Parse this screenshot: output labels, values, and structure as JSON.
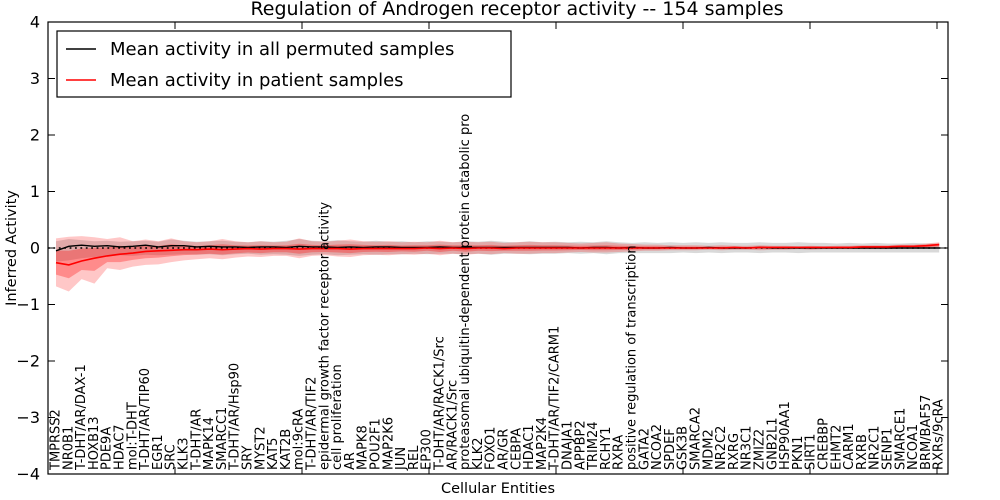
{
  "title": "Regulation of Androgen receptor activity -- 154 samples",
  "axes": {
    "x_label": "Cellular Entities",
    "y_label": "Inferred Activity",
    "y_ticks": [
      {
        "value": 4,
        "label": "4"
      },
      {
        "value": 3,
        "label": "3"
      },
      {
        "value": 2,
        "label": "2"
      },
      {
        "value": 1,
        "label": "1"
      },
      {
        "value": 0,
        "label": "0"
      },
      {
        "value": -1,
        "label": "−1"
      },
      {
        "value": -2,
        "label": "−2"
      },
      {
        "value": -3,
        "label": "−3"
      },
      {
        "value": -4,
        "label": "−4"
      }
    ]
  },
  "legend": {
    "items": [
      {
        "label": "Mean activity in all permuted samples",
        "color": "#000000"
      },
      {
        "label": "Mean activity in patient samples",
        "color": "#ff0000"
      }
    ]
  },
  "chart_data": {
    "type": "line",
    "title": "Regulation of Androgen receptor activity -- 154 samples",
    "xlabel": "Cellular Entities",
    "ylabel": "Inferred Activity",
    "ylim": [
      -4,
      4
    ],
    "grid": false,
    "legend_position": "upper left",
    "reference_line": {
      "y": 0,
      "style": "dotted",
      "color": "#000000"
    },
    "categories": [
      "TMPRSS2",
      "NR0B1",
      "T-DHT/AR/DAX-1",
      "HOXB13",
      "PDE9A",
      "HDAC7",
      "mol:T-DHT",
      "T-DHT/AR/TIP60",
      "EGR1",
      "SRC",
      "KLK3",
      "T-DHT/AR",
      "MAPK14",
      "SMARCC1",
      "T-DHT/AR/Hsp90",
      "SRY",
      "MYST2",
      "KAT5",
      "KAT2B",
      "mol:9cRA",
      "T-DHT/AR/TIF2",
      "epidermal growth factor receptor activity",
      "cell proliferation",
      "AR",
      "MAPK8",
      "POU2F1",
      "MAP2K6",
      "JUN",
      "REL",
      "EP300",
      "T-DHT/AR/RACK1/Src",
      "AR/RACK1/Src",
      "proteasomal ubiquitin-dependent protein catabolic pro",
      "KLK2",
      "FOXO1",
      "AR/GR",
      "CEBPA",
      "HDAC1",
      "MAP2K4",
      "T-DHT/AR/TIF2/CARM1",
      "DNAJA1",
      "APPBP2",
      "TRIM24",
      "RCHY1",
      "RXRA",
      "positive regulation of transcription",
      "GATA2",
      "NCOA2",
      "SPDEF",
      "GSK3B",
      "SMARCA2",
      "MDM2",
      "NR2C2",
      "RXRG",
      "NR3C1",
      "ZMIZ2",
      "GNB2L1",
      "HSP90AA1",
      "PKN1",
      "SIRT1",
      "CREBBP",
      "EHMT2",
      "CARM1",
      "RXRB",
      "NR2C1",
      "SENP1",
      "SMARCE1",
      "NCOA1",
      "BRM/BAF57",
      "RXRs/9cRA"
    ],
    "series": [
      {
        "name": "Mean activity in all permuted samples",
        "color": "#000000",
        "band_color": "rgba(0,0,0,0.15)",
        "values": [
          -0.05,
          0.03,
          0.05,
          0.03,
          0.04,
          0.02,
          0.03,
          0.05,
          0.02,
          0.04,
          0.04,
          0.02,
          0.03,
          0.02,
          0.02,
          0.01,
          0.02,
          0.02,
          0.01,
          0.03,
          0.02,
          0.02,
          0.01,
          0.02,
          0.01,
          0.02,
          0.02,
          0.01,
          0.01,
          0.01,
          0.02,
          0.01,
          0.01,
          0.01,
          0.01,
          0.01,
          0.01,
          0.01,
          0.01,
          0.01,
          0.01,
          0,
          0.01,
          0.01,
          0,
          0.01,
          0,
          0,
          0.01,
          0,
          0,
          0.01,
          0,
          0,
          0,
          0.01,
          0,
          0,
          0,
          0,
          0,
          0,
          0,
          0,
          0,
          0,
          0,
          0,
          0,
          0
        ],
        "band_upper": [
          0.12,
          0.16,
          0.14,
          0.12,
          0.13,
          0.11,
          0.12,
          0.13,
          0.11,
          0.15,
          0.13,
          0.11,
          0.12,
          0.13,
          0.11,
          0.1,
          0.12,
          0.11,
          0.13,
          0.16,
          0.13,
          0.12,
          0.14,
          0.12,
          0.11,
          0.13,
          0.11,
          0.12,
          0.1,
          0.12,
          0.11,
          0.1,
          0.12,
          0.11,
          0.13,
          0.11,
          0.1,
          0.12,
          0.1,
          0.11,
          0.1,
          0.11,
          0.1,
          0.12,
          0.1,
          0.09,
          0.1,
          0.09,
          0.1,
          0.09,
          0.1,
          0.09,
          0.1,
          0.09,
          0.09,
          0.1,
          0.09,
          0.09,
          0.1,
          0.09,
          0.09,
          0.08,
          0.09,
          0.08,
          0.09,
          0.08,
          0.08,
          0.09,
          0.08,
          0.08
        ],
        "band_lower": [
          -0.24,
          -0.22,
          -0.18,
          -0.16,
          -0.15,
          -0.13,
          -0.14,
          -0.12,
          -0.13,
          -0.12,
          -0.11,
          -0.12,
          -0.11,
          -0.13,
          -0.11,
          -0.1,
          -0.12,
          -0.11,
          -0.12,
          -0.14,
          -0.12,
          -0.11,
          -0.13,
          -0.12,
          -0.11,
          -0.12,
          -0.11,
          -0.11,
          -0.1,
          -0.11,
          -0.1,
          -0.1,
          -0.11,
          -0.1,
          -0.12,
          -0.1,
          -0.1,
          -0.11,
          -0.1,
          -0.1,
          -0.09,
          -0.1,
          -0.09,
          -0.11,
          -0.09,
          -0.09,
          -0.09,
          -0.09,
          -0.09,
          -0.08,
          -0.09,
          -0.08,
          -0.09,
          -0.08,
          -0.08,
          -0.09,
          -0.08,
          -0.08,
          -0.09,
          -0.08,
          -0.08,
          -0.08,
          -0.08,
          -0.08,
          -0.08,
          -0.08,
          -0.08,
          -0.08,
          -0.08,
          -0.08
        ]
      },
      {
        "name": "Mean activity in patient samples",
        "color": "#ff0000",
        "band_color": "rgba(255,0,0,0.22)",
        "band_inner_color": "rgba(255,0,0,0.30)",
        "values": [
          -0.26,
          -0.3,
          -0.23,
          -0.18,
          -0.14,
          -0.11,
          -0.09,
          -0.06,
          -0.05,
          -0.04,
          -0.03,
          -0.03,
          -0.02,
          -0.03,
          -0.02,
          -0.01,
          -0.02,
          -0.01,
          -0.01,
          -0.02,
          -0.01,
          -0.01,
          -0.01,
          -0.02,
          -0.01,
          -0.01,
          -0.01,
          -0.01,
          -0.01,
          0,
          -0.01,
          0,
          -0.01,
          0,
          0,
          -0.01,
          0,
          0,
          0,
          0,
          0,
          0,
          0,
          0,
          0,
          0,
          0,
          0,
          0,
          0,
          0,
          0,
          0,
          0.01,
          0,
          0.01,
          0.01,
          0.01,
          0.01,
          0.01,
          0.01,
          0.01,
          0.01,
          0.02,
          0.02,
          0.02,
          0.03,
          0.03,
          0.04,
          0.06
        ],
        "band_upper": [
          0.17,
          0.2,
          0.21,
          0.19,
          0.16,
          0.19,
          0.12,
          0.15,
          0.12,
          0.17,
          0.12,
          0.1,
          0.12,
          0.16,
          0.12,
          0.1,
          0.12,
          0.1,
          0.11,
          0.17,
          0.12,
          0.11,
          0.13,
          0.15,
          0.12,
          0.11,
          0.12,
          0.1,
          0.11,
          0.1,
          0.13,
          0.1,
          0.11,
          0.1,
          0.11,
          0.09,
          0.1,
          0.11,
          0.1,
          0.1,
          0.09,
          0.08,
          0.09,
          0.1,
          0.08,
          0.07,
          0.06,
          0.06,
          0.05,
          0.05,
          0.05,
          0.04,
          0.05,
          0.04,
          0.04,
          0.05,
          0.04,
          0.04,
          0.03,
          0.04,
          0.03,
          0.04,
          0.04,
          0.05,
          0.05,
          0.05,
          0.06,
          0.06,
          0.08,
          0.1
        ],
        "band_lower": [
          -0.68,
          -0.77,
          -0.55,
          -0.63,
          -0.36,
          -0.39,
          -0.33,
          -0.3,
          -0.29,
          -0.25,
          -0.22,
          -0.2,
          -0.18,
          -0.2,
          -0.17,
          -0.15,
          -0.16,
          -0.14,
          -0.14,
          -0.18,
          -0.14,
          -0.13,
          -0.15,
          -0.16,
          -0.13,
          -0.12,
          -0.13,
          -0.11,
          -0.12,
          -0.1,
          -0.13,
          -0.1,
          -0.12,
          -0.1,
          -0.11,
          -0.09,
          -0.1,
          -0.1,
          -0.09,
          -0.09,
          -0.08,
          -0.07,
          -0.08,
          -0.08,
          -0.07,
          -0.06,
          -0.05,
          -0.05,
          -0.04,
          -0.04,
          -0.04,
          -0.03,
          -0.04,
          -0.03,
          -0.03,
          -0.04,
          -0.03,
          -0.03,
          -0.02,
          -0.03,
          -0.02,
          -0.02,
          -0.02,
          -0.02,
          -0.02,
          -0.02,
          -0.01,
          -0.01,
          -0.01,
          0
        ]
      }
    ]
  }
}
